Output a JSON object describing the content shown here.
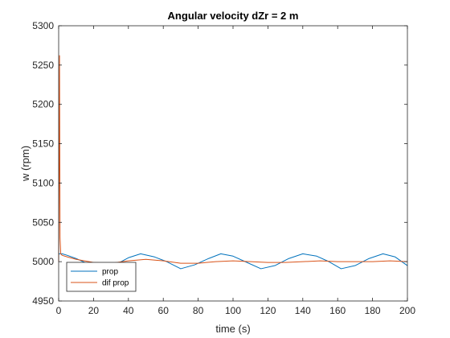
{
  "chart_data": {
    "type": "line",
    "title": "Angular velocity dZr = 2 m",
    "xlabel": "time (s)",
    "ylabel": "w (rpm)",
    "xlim": [
      0,
      200
    ],
    "ylim": [
      4950,
      5300
    ],
    "xticks": [
      0,
      20,
      40,
      60,
      80,
      100,
      120,
      140,
      160,
      180,
      200
    ],
    "yticks": [
      4950,
      5000,
      5050,
      5100,
      5150,
      5200,
      5250,
      5300
    ],
    "grid": false,
    "legend_position": "bottom-left",
    "series": [
      {
        "name": "prop",
        "color": "#0072BD",
        "x": [
          0,
          2,
          5,
          10,
          15,
          20,
          25,
          30,
          35,
          40,
          47,
          55,
          62,
          70,
          78,
          86,
          93,
          100,
          108,
          116,
          124,
          132,
          140,
          148,
          155,
          162,
          170,
          178,
          186,
          193,
          200
        ],
        "y": [
          5010,
          5010,
          5008,
          5004,
          4999,
          4995,
          4992,
          4994,
          4999,
          5005,
          5010,
          5006,
          5000,
          4991,
          4996,
          5004,
          5010,
          5007,
          4999,
          4991,
          4995,
          5004,
          5010,
          5007,
          5000,
          4991,
          4995,
          5004,
          5010,
          5006,
          4995
        ]
      },
      {
        "name": "dif prop",
        "color": "#D95319",
        "x": [
          0,
          0.5,
          0.8,
          1.2,
          2,
          5,
          10,
          20,
          30,
          40,
          50,
          60,
          70,
          80,
          90,
          100,
          110,
          120,
          130,
          140,
          150,
          160,
          170,
          180,
          190,
          200
        ],
        "y": [
          5000,
          5262,
          5030,
          5010,
          5008,
          5006,
          5003,
          4999,
          4998,
          5001,
          5003,
          5001,
          4998,
          4998,
          5000,
          5001,
          5000,
          4999,
          4999,
          5000,
          5001,
          5000,
          5000,
          5000,
          5001,
          5000
        ]
      }
    ]
  }
}
